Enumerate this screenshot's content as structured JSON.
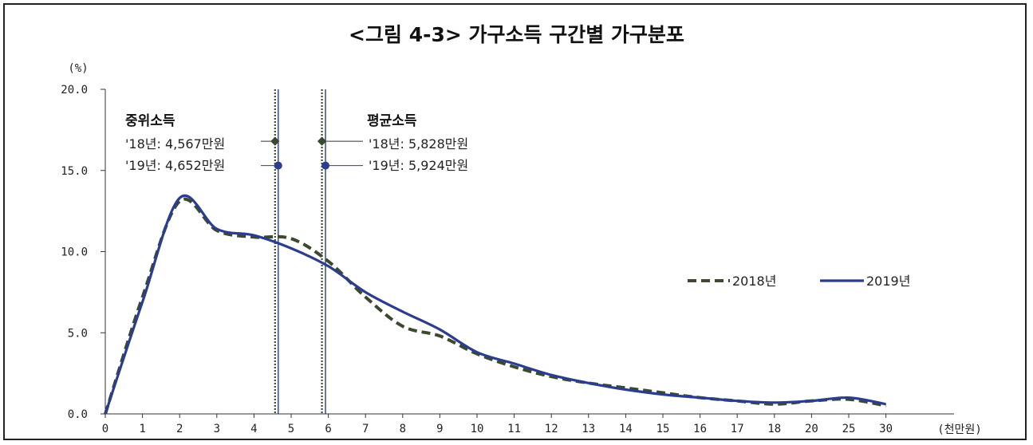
{
  "title": "<그림 4-3> 가구소득 구간별 가구분포",
  "chart_data": {
    "type": "line",
    "title": "<그림 4-3> 가구소득 구간별 가구분포",
    "ylabel": "(%)",
    "xlabel": "(천만원)",
    "ylim": [
      0,
      20
    ],
    "yticks": [
      "0.0",
      "5.0",
      "10.0",
      "15.0",
      "20.0"
    ],
    "x": [
      "0",
      "1",
      "2",
      "3",
      "4",
      "5",
      "6",
      "7",
      "8",
      "9",
      "10",
      "11",
      "12",
      "13",
      "14",
      "15",
      "16",
      "17",
      "18",
      "20",
      "25",
      "30"
    ],
    "legend_position": "right",
    "series": [
      {
        "name": "2018년",
        "style": "dashed",
        "color": "#3b4a2e",
        "values": [
          0.0,
          7.2,
          13.1,
          11.3,
          10.9,
          10.8,
          9.4,
          7.2,
          5.4,
          4.8,
          3.7,
          2.9,
          2.3,
          1.9,
          1.6,
          1.3,
          1.0,
          0.8,
          0.6,
          0.8,
          0.9,
          0.5
        ]
      },
      {
        "name": "2019년",
        "style": "solid",
        "color": "#2a3d8f",
        "values": [
          0.0,
          6.9,
          13.3,
          11.4,
          11.0,
          10.2,
          9.1,
          7.5,
          6.3,
          5.2,
          3.8,
          3.1,
          2.4,
          1.9,
          1.5,
          1.2,
          1.0,
          0.8,
          0.7,
          0.8,
          1.0,
          0.6
        ]
      }
    ],
    "annotations": {
      "median_title": "중위소득",
      "median_2018": "'18년: 4,567만원",
      "median_2019": "'19년: 4,652만원",
      "mean_title": "평균소득",
      "mean_2018": "'18년: 5,828만원",
      "mean_2019": "'19년: 5,924만원"
    },
    "reference_lines": {
      "median_2018": 4.567,
      "median_2019": 4.652,
      "mean_2018": 5.828,
      "mean_2019": 5.924
    }
  }
}
